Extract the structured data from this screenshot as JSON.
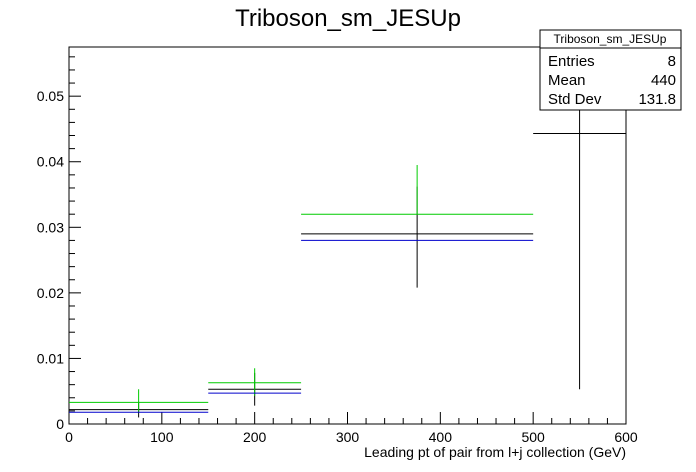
{
  "chart_data": {
    "type": "scatter",
    "title": "Triboson_sm_JESUp",
    "xlabel": "Leading pt of pair from l+j collection (GeV)",
    "ylabel": "",
    "xlim": [
      0,
      600
    ],
    "ylim": [
      0,
      0.0575
    ],
    "x_ticks": [
      0,
      100,
      200,
      300,
      400,
      500,
      600
    ],
    "y_ticks": [
      0,
      0.01,
      0.02,
      0.03,
      0.04,
      0.05
    ],
    "y_tick_labels": [
      "0",
      "0.01",
      "0.02",
      "0.03",
      "0.04",
      "0.05"
    ],
    "bins": [
      [
        0,
        150
      ],
      [
        150,
        250
      ],
      [
        250,
        500
      ],
      [
        500,
        600
      ]
    ],
    "series": [
      {
        "color": "#000000",
        "values": [
          0.0022,
          0.0053,
          0.029,
          0.0443
        ],
        "err_low": [
          0.0012,
          0.0025,
          0.0082,
          0.039
        ],
        "err_high": [
          0.0012,
          0.0025,
          0.0072,
          0.0132
        ]
      },
      {
        "color": "#00cc00",
        "values": [
          0.0033,
          0.0063,
          0.032,
          null
        ],
        "err_low": [
          0.0014,
          0.002,
          0.0,
          null
        ],
        "err_high": [
          0.002,
          0.0022,
          0.0075,
          null
        ]
      },
      {
        "color": "#0000cc",
        "values": [
          0.0018,
          0.0047,
          0.028,
          null
        ],
        "err_low": [
          0,
          0,
          0,
          null
        ],
        "err_high": [
          0,
          0,
          0,
          null
        ]
      }
    ],
    "stats_box": {
      "title": "Triboson_sm_JESUp",
      "rows": [
        {
          "label": "Entries",
          "value": "8"
        },
        {
          "label": "Mean",
          "value": "440"
        },
        {
          "label": "Std Dev",
          "value": "131.8"
        }
      ]
    }
  }
}
